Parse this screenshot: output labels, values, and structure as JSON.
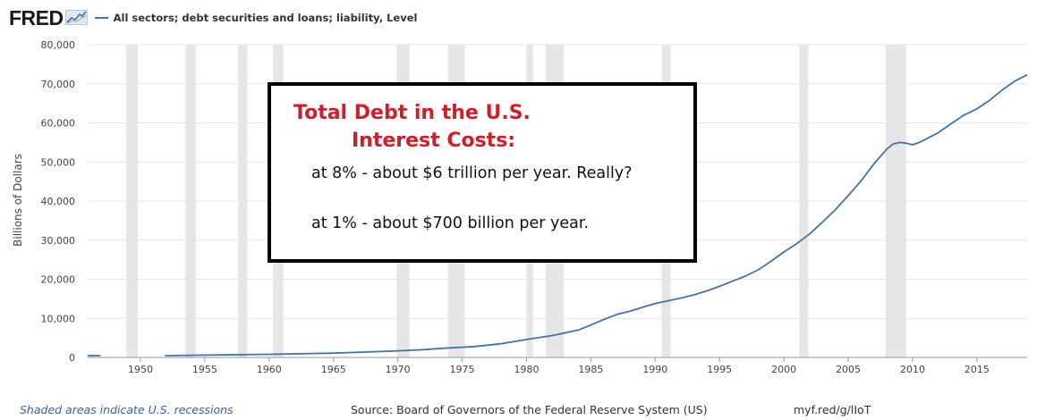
{
  "header": {
    "logo_text": "FRED",
    "logo_icon": "line-chart-icon",
    "series_title": "All sectors; debt securities and loans; liability, Level"
  },
  "chart_data": {
    "type": "line",
    "title": "",
    "xlabel": "",
    "ylabel": "Billions of Dollars",
    "xlim": [
      1945.9,
      2018.9
    ],
    "ylim": [
      0,
      80000
    ],
    "x_ticks": [
      "1950",
      "1955",
      "1960",
      "1965",
      "1970",
      "1975",
      "1980",
      "1985",
      "1990",
      "1995",
      "2000",
      "2005",
      "2010",
      "2015"
    ],
    "y_ticks": [
      "0",
      "10,000",
      "20,000",
      "30,000",
      "40,000",
      "50,000",
      "60,000",
      "70,000",
      "80,000"
    ],
    "grid": "horizontal",
    "line_color": "#4572a7",
    "recession_color": "#e6e6e6",
    "recessions": [
      [
        1948.9,
        1949.8
      ],
      [
        1953.5,
        1954.3
      ],
      [
        1957.6,
        1958.3
      ],
      [
        1960.3,
        1961.1
      ],
      [
        1969.9,
        1970.9
      ],
      [
        1973.9,
        1975.2
      ],
      [
        1980.0,
        1980.5
      ],
      [
        1981.5,
        1982.9
      ],
      [
        1990.5,
        1991.2
      ],
      [
        2001.2,
        2001.9
      ],
      [
        2007.9,
        2009.5
      ]
    ],
    "series": [
      {
        "x": [
          1945.9,
          1946.9
        ],
        "y": [
          450,
          480
        ]
      },
      {
        "x": [
          1951.9,
          1955,
          1960,
          1965,
          1968,
          1970,
          1972,
          1974,
          1976,
          1978,
          1980,
          1982,
          1984,
          1985,
          1986,
          1987,
          1988,
          1989,
          1990,
          1991,
          1992,
          1993,
          1994,
          1995,
          1996,
          1997,
          1998,
          1999,
          2000,
          2001,
          2002,
          2003,
          2004,
          2005,
          2006,
          2007,
          2008,
          2008.5,
          2009,
          2009.5,
          2010,
          2010.5,
          2011,
          2012,
          2013,
          2014,
          2015,
          2016,
          2017,
          2018,
          2018.9
        ],
        "y": [
          450,
          600,
          800,
          1100,
          1450,
          1700,
          2000,
          2450,
          2800,
          3500,
          4600,
          5600,
          7000,
          8300,
          9700,
          11000,
          11800,
          12800,
          13800,
          14500,
          15200,
          16000,
          17000,
          18200,
          19500,
          20800,
          22400,
          24600,
          27000,
          29100,
          31600,
          34600,
          37800,
          41400,
          45200,
          49500,
          53300,
          54600,
          55000,
          54800,
          54400,
          55000,
          55800,
          57500,
          59800,
          62000,
          63600,
          65800,
          68500,
          70800,
          72300
        ]
      }
    ],
    "annotation": {
      "line1": "Total Debt in the U.S.",
      "line2": "Interest Costs:",
      "line3": "at 8% - about $6 trillion per year. Really?",
      "line4": "at 1% - about $700 billion per year.",
      "title_color": "#d01f2c"
    }
  },
  "footer": {
    "shaded_note": "Shaded areas indicate U.S. recessions",
    "source": "Source: Board of Governors of the Federal Reserve System (US)",
    "link": "myf.red/g/lIoT"
  }
}
